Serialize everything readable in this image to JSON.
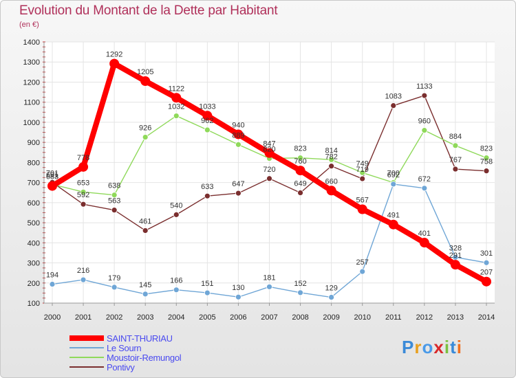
{
  "title": "Evolution du Montant de la Dette par Habitant",
  "unit_label": "(en €)",
  "logo_text": "Proxiti",
  "chart_data": {
    "type": "line",
    "title": "Evolution du Montant de la Dette par Habitant",
    "ylabel": "(en €)",
    "x": [
      2000,
      2001,
      2002,
      2003,
      2004,
      2005,
      2006,
      2007,
      2008,
      2009,
      2010,
      2011,
      2012,
      2013,
      2014
    ],
    "ylim": [
      100,
      1400
    ],
    "yticks": [
      100,
      200,
      300,
      400,
      500,
      600,
      700,
      800,
      900,
      1000,
      1100,
      1200,
      1300,
      1400
    ],
    "grid": true,
    "legend_position": "bottom-left",
    "series": [
      {
        "name": "SAINT-THURIAU",
        "color": "#ff0000",
        "values": [
          683,
          778,
          1292,
          1205,
          1122,
          1033,
          940,
          847,
          760,
          660,
          567,
          491,
          401,
          291,
          207
        ]
      },
      {
        "name": "Le Sourn",
        "color": "#6fa6d6",
        "values": [
          194,
          216,
          179,
          145,
          166,
          151,
          130,
          181,
          152,
          129,
          257,
          692,
          672,
          328,
          301
        ]
      },
      {
        "name": "Moustoir-Remungol",
        "color": "#8fd95a",
        "values": [
          691,
          653,
          638,
          926,
          1032,
          962,
          889,
          820,
          823,
          814,
          749,
          700,
          960,
          884,
          823
        ]
      },
      {
        "name": "Pontivy",
        "color": "#7a2e2e",
        "values": [
          701,
          592,
          563,
          461,
          540,
          633,
          647,
          720,
          649,
          782,
          719,
          1083,
          1133,
          767,
          758
        ]
      }
    ]
  }
}
